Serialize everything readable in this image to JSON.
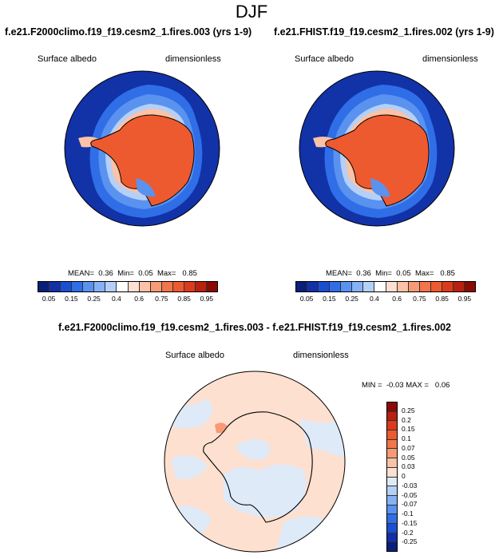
{
  "figure": {
    "title": "DJF",
    "panel_left": {
      "title": "f.e21.F2000climo.f19_f19.cesm2_1.fires.003 (yrs 1-9)",
      "variable": "Surface albedo",
      "units": "dimensionless",
      "stats": {
        "mean_label": "MEAN=",
        "mean": "0.36",
        "min_label": "Min=",
        "min": "0.05",
        "max_label": "Max=",
        "max": "0.85"
      }
    },
    "panel_right": {
      "title": "f.e21.FHIST.f19_f19.cesm2_1.fires.002 (yrs 1-9)",
      "variable": "Surface albedo",
      "units": "dimensionless",
      "stats": {
        "mean_label": "MEAN=",
        "mean": "0.36",
        "min_label": "Min=",
        "min": "0.05",
        "max_label": "Max=",
        "max": "0.85"
      }
    },
    "panel_diff": {
      "title": "f.e21.F2000climo.f19_f19.cesm2_1.fires.003 - f.e21.FHIST.f19_f19.cesm2_1.fires.002",
      "variable": "Surface albedo",
      "units": "dimensionless",
      "stats": {
        "min_label": "MIN =",
        "min": "-0.03",
        "max_label": "MAX =",
        "max": "0.06"
      }
    },
    "colorbar_main": {
      "colors": [
        "#0a1f7a",
        "#1230a8",
        "#1b4fd1",
        "#2f6ee6",
        "#5a92f0",
        "#86b2f5",
        "#b4d0f8",
        "#ffffff",
        "#fde0d0",
        "#fbc2a6",
        "#f79a75",
        "#f2754b",
        "#ee5a2f",
        "#dc3a1c",
        "#b8200f",
        "#8a0a05"
      ],
      "ticks": [
        "0.05",
        "0.15",
        "0.25",
        "0.4",
        "0.6",
        "0.75",
        "0.85",
        "0.95"
      ]
    },
    "colorbar_diff": {
      "colors": [
        "#8a0a05",
        "#b8200f",
        "#dc3a1c",
        "#ee5a2f",
        "#f2754b",
        "#f79a75",
        "#fbc2a6",
        "#fde0d0",
        "#dfeaf8",
        "#b4d0f8",
        "#86b2f5",
        "#5a92f0",
        "#2f6ee6",
        "#1b4fd1",
        "#1230a8",
        "#0a1f7a"
      ],
      "ticks": [
        "0.25",
        "0.2",
        "0.15",
        "0.1",
        "0.07",
        "0.05",
        "0.03",
        "0",
        "-0.03",
        "-0.05",
        "-0.07",
        "-0.1",
        "-0.15",
        "-0.2",
        "-0.25"
      ]
    },
    "palette": {
      "ocean": "#1232a8",
      "ice": "#ee5a2f",
      "shelf_blue": "#5a92f0",
      "pale_blue": "#b4d0f8",
      "diff_pos": "#fde0d0",
      "diff_neg": "#dfeaf8",
      "diff_hot": "#f79a75"
    }
  }
}
